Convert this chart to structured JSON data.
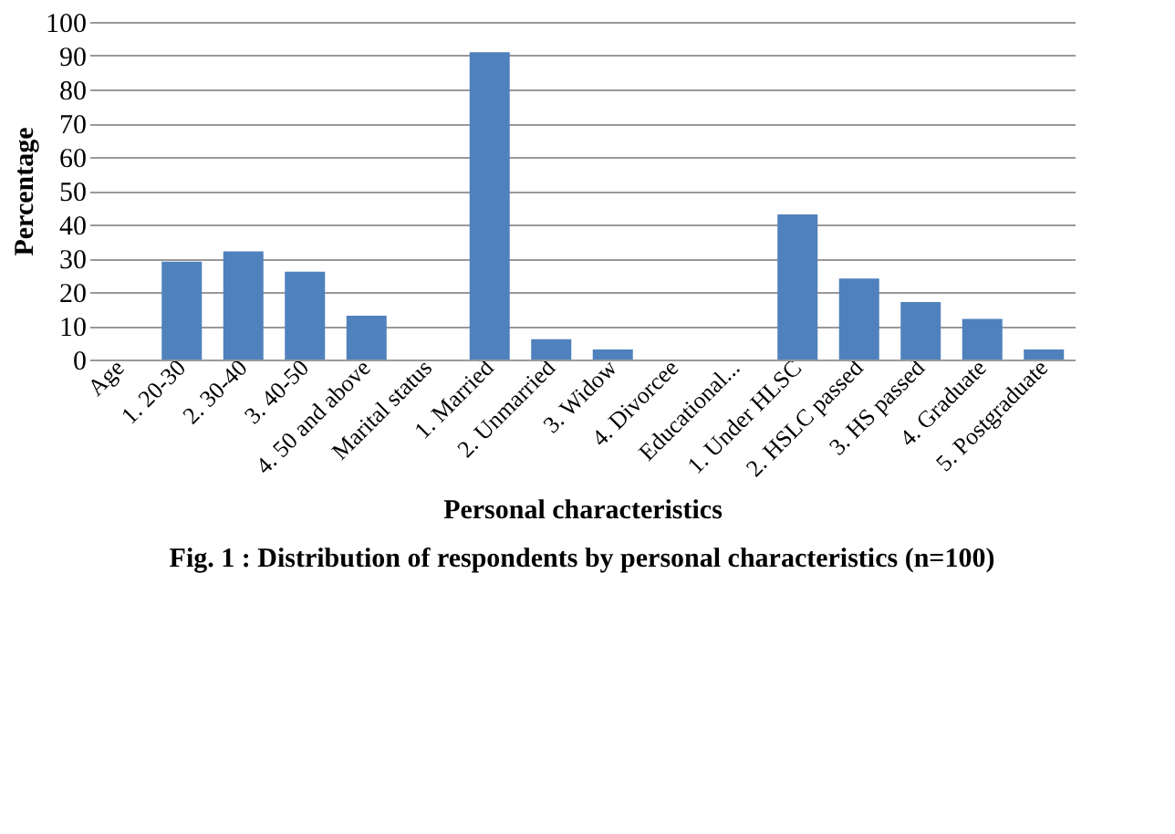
{
  "chart_data": {
    "type": "bar",
    "title": "Fig. 1 : Distribution of respondents by personal characteristics (n=100)",
    "xlabel": "Personal characteristics",
    "ylabel": "Percentage",
    "categories": [
      "Age",
      "1. 20-30",
      "2. 30-40",
      "3. 40-50",
      "4. 50 and above",
      "Marital status",
      "1. Married",
      "2. Unmarried",
      "3. Widow",
      "4. Divorcee",
      "Educational...",
      "1. Under HLSC",
      "2. HSLC passed",
      "3. HS passed",
      "4. Graduate",
      "5. Postgraduate"
    ],
    "values": [
      null,
      29,
      32,
      26,
      13,
      null,
      91,
      6,
      3,
      0,
      null,
      43,
      24,
      17,
      12,
      3
    ],
    "color": "#4f81bd",
    "ylim": [
      0,
      100
    ],
    "yticks": [
      0,
      10,
      20,
      30,
      40,
      50,
      60,
      70,
      80,
      90,
      100
    ],
    "grid": "y"
  }
}
